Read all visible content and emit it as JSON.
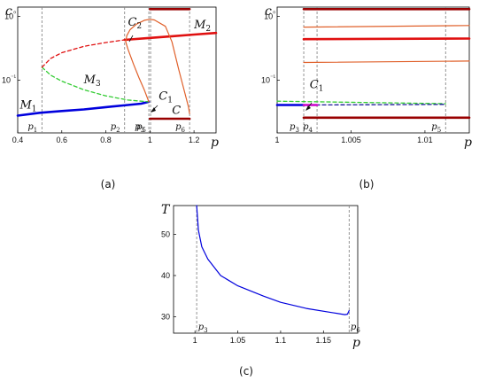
{
  "chart_data": [
    {
      "panel": "(a)",
      "type": "line",
      "xlabel": "p",
      "ylabel": "c",
      "xlim": [
        0.4,
        1.3
      ],
      "y_scale": "log",
      "ylim": [
        0.015,
        1.4
      ],
      "x_ticks": [
        "0.4",
        "0.6",
        "0.8",
        "1",
        "1.2"
      ],
      "y_ticks": [
        "10⁻¹",
        "10⁰"
      ],
      "markers": [
        {
          "label": "p₁",
          "x": 0.51
        },
        {
          "label": "p₂",
          "x": 0.885
        },
        {
          "label": "p₃",
          "x": 0.995
        },
        {
          "label": "p₅",
          "x": 1.003
        },
        {
          "label": "p₆",
          "x": 1.18
        }
      ],
      "series": [
        {
          "name": "M₁",
          "color": "#0000dd",
          "style": "solid-thick",
          "points": [
            [
              0.4,
              0.028
            ],
            [
              0.5,
              0.031
            ],
            [
              0.6,
              0.033
            ],
            [
              0.7,
              0.035
            ],
            [
              0.8,
              0.038
            ],
            [
              0.9,
              0.041
            ],
            [
              0.96,
              0.043
            ],
            [
              0.995,
              0.046
            ]
          ]
        },
        {
          "name": "M₃",
          "color": "#33cc33",
          "style": "dashed",
          "points": [
            [
              0.51,
              0.16
            ],
            [
              0.55,
              0.12
            ],
            [
              0.6,
              0.097
            ],
            [
              0.7,
              0.071
            ],
            [
              0.8,
              0.057
            ],
            [
              0.9,
              0.049
            ],
            [
              0.995,
              0.046
            ]
          ]
        },
        {
          "name": "",
          "color": "#e01010",
          "style": "dashed",
          "points": [
            [
              0.51,
              0.16
            ],
            [
              0.55,
              0.22
            ],
            [
              0.6,
              0.27
            ],
            [
              0.7,
              0.34
            ],
            [
              0.8,
              0.39
            ],
            [
              0.885,
              0.43
            ]
          ]
        },
        {
          "name": "M₂",
          "color": "#e01010",
          "style": "solid-thick",
          "points": [
            [
              0.885,
              0.43
            ],
            [
              1.0,
              0.46
            ],
            [
              1.1,
              0.49
            ],
            [
              1.2,
              0.52
            ],
            [
              1.3,
              0.55
            ]
          ]
        },
        {
          "name": "C₂",
          "color": "#e0602a",
          "style": "solid-thin",
          "points": [
            [
              0.995,
              0.046
            ],
            [
              0.975,
              0.07
            ],
            [
              0.95,
              0.11
            ],
            [
              0.925,
              0.18
            ],
            [
              0.9,
              0.31
            ],
            [
              0.89,
              0.4
            ],
            [
              0.895,
              0.5
            ],
            [
              0.91,
              0.62
            ],
            [
              0.94,
              0.76
            ],
            [
              0.975,
              0.87
            ],
            [
              1.0,
              0.9
            ],
            [
              1.02,
              0.88
            ],
            [
              1.07,
              0.7
            ],
            [
              1.1,
              0.4
            ],
            [
              1.13,
              0.15
            ],
            [
              1.16,
              0.06
            ],
            [
              1.175,
              0.038
            ],
            [
              1.18,
              0.03
            ]
          ]
        },
        {
          "name": "C",
          "color": "#990000",
          "style": "solid-thick",
          "points": [
            [
              1.0,
              0.025
            ],
            [
              1.18,
              0.025
            ]
          ]
        },
        {
          "name": "",
          "color": "#990000",
          "style": "solid-thick",
          "points": [
            [
              1.0,
              1.3
            ],
            [
              1.18,
              1.3
            ]
          ]
        }
      ],
      "annotations": [
        {
          "text": "M₁",
          "x": 0.41,
          "y": 0.036
        },
        {
          "text": "M₃",
          "x": 0.7,
          "y": 0.09
        },
        {
          "text": "C₁",
          "x": 1.04,
          "y": 0.05
        },
        {
          "text": "C₂",
          "x": 0.9,
          "y": 0.72
        },
        {
          "text": "M₂",
          "x": 1.2,
          "y": 0.65
        },
        {
          "text": "C",
          "x": 1.1,
          "y": 0.03
        }
      ]
    },
    {
      "panel": "(b)",
      "type": "line",
      "xlabel": "p",
      "ylabel": "c",
      "xlim": [
        1.0,
        1.013
      ],
      "y_scale": "log",
      "ylim": [
        0.015,
        1.4
      ],
      "x_ticks": [
        "1",
        "1.005",
        "1.01"
      ],
      "y_ticks": [
        "10⁻¹",
        "10⁰"
      ],
      "markers": [
        {
          "label": "p₃",
          "x": 1.0018
        },
        {
          "label": "p₄",
          "x": 1.0027
        },
        {
          "label": "p₅",
          "x": 1.0114
        }
      ],
      "series": [
        {
          "name": "",
          "color": "#990000",
          "style": "solid-thick",
          "points": [
            [
              1.0018,
              1.3
            ],
            [
              1.013,
              1.3
            ]
          ]
        },
        {
          "name": "",
          "color": "#e0602a",
          "style": "solid-thin",
          "points": [
            [
              1.0018,
              0.68
            ],
            [
              1.013,
              0.72
            ]
          ]
        },
        {
          "name": "",
          "color": "#e01010",
          "style": "solid-thick",
          "points": [
            [
              1.0018,
              0.44
            ],
            [
              1.013,
              0.45
            ]
          ]
        },
        {
          "name": "",
          "color": "#e0602a",
          "style": "solid-thin",
          "points": [
            [
              1.0018,
              0.19
            ],
            [
              1.013,
              0.2
            ]
          ]
        },
        {
          "name": "",
          "color": "#33cc33",
          "style": "dashed",
          "points": [
            [
              1.0,
              0.047
            ],
            [
              1.0114,
              0.043
            ]
          ]
        },
        {
          "name": "",
          "color": "#0000dd",
          "style": "solid-thick",
          "points": [
            [
              1.0,
              0.041
            ],
            [
              1.0018,
              0.041
            ]
          ]
        },
        {
          "name": "",
          "color": "#1a1a99",
          "style": "dashed",
          "points": [
            [
              1.0018,
              0.041
            ],
            [
              1.0114,
              0.042
            ]
          ]
        },
        {
          "name": "",
          "color": "#cc00cc",
          "style": "solid-thick",
          "points": [
            [
              1.0018,
              0.041
            ],
            [
              1.0027,
              0.041
            ]
          ]
        },
        {
          "name": "",
          "color": "#990000",
          "style": "solid-thick",
          "points": [
            [
              1.0018,
              0.026
            ],
            [
              1.013,
              0.026
            ]
          ]
        }
      ],
      "annotations": [
        {
          "text": "C₁",
          "x": 1.0022,
          "y": 0.075
        }
      ]
    },
    {
      "panel": "(c)",
      "type": "line",
      "xlabel": "p",
      "ylabel": "T",
      "xlim": [
        0.975,
        1.19
      ],
      "ylim": [
        26,
        57
      ],
      "x_ticks": [
        "1",
        "1.05",
        "1.1",
        "1.15"
      ],
      "x_tick_values": [
        1.0,
        1.05,
        1.1,
        1.15
      ],
      "y_ticks": [
        "30",
        "40",
        "50"
      ],
      "y_tick_values": [
        30,
        40,
        50
      ],
      "markers": [
        {
          "label": "p₃",
          "x": 1.002
        },
        {
          "label": "p₆",
          "x": 1.18
        }
      ],
      "series": [
        {
          "name": "",
          "color": "#0000dd",
          "style": "solid",
          "points": [
            [
              1.002,
              57
            ],
            [
              1.004,
              51
            ],
            [
              1.008,
              47
            ],
            [
              1.015,
              44
            ],
            [
              1.03,
              40
            ],
            [
              1.05,
              37.5
            ],
            [
              1.08,
              35
            ],
            [
              1.1,
              33.5
            ],
            [
              1.13,
              32
            ],
            [
              1.16,
              31
            ],
            [
              1.175,
              30.5
            ],
            [
              1.178,
              30.6
            ],
            [
              1.18,
              31.5
            ]
          ]
        }
      ]
    }
  ],
  "panel_labels": {
    "a": "(a)",
    "b": "(b)",
    "c": "(c)"
  }
}
